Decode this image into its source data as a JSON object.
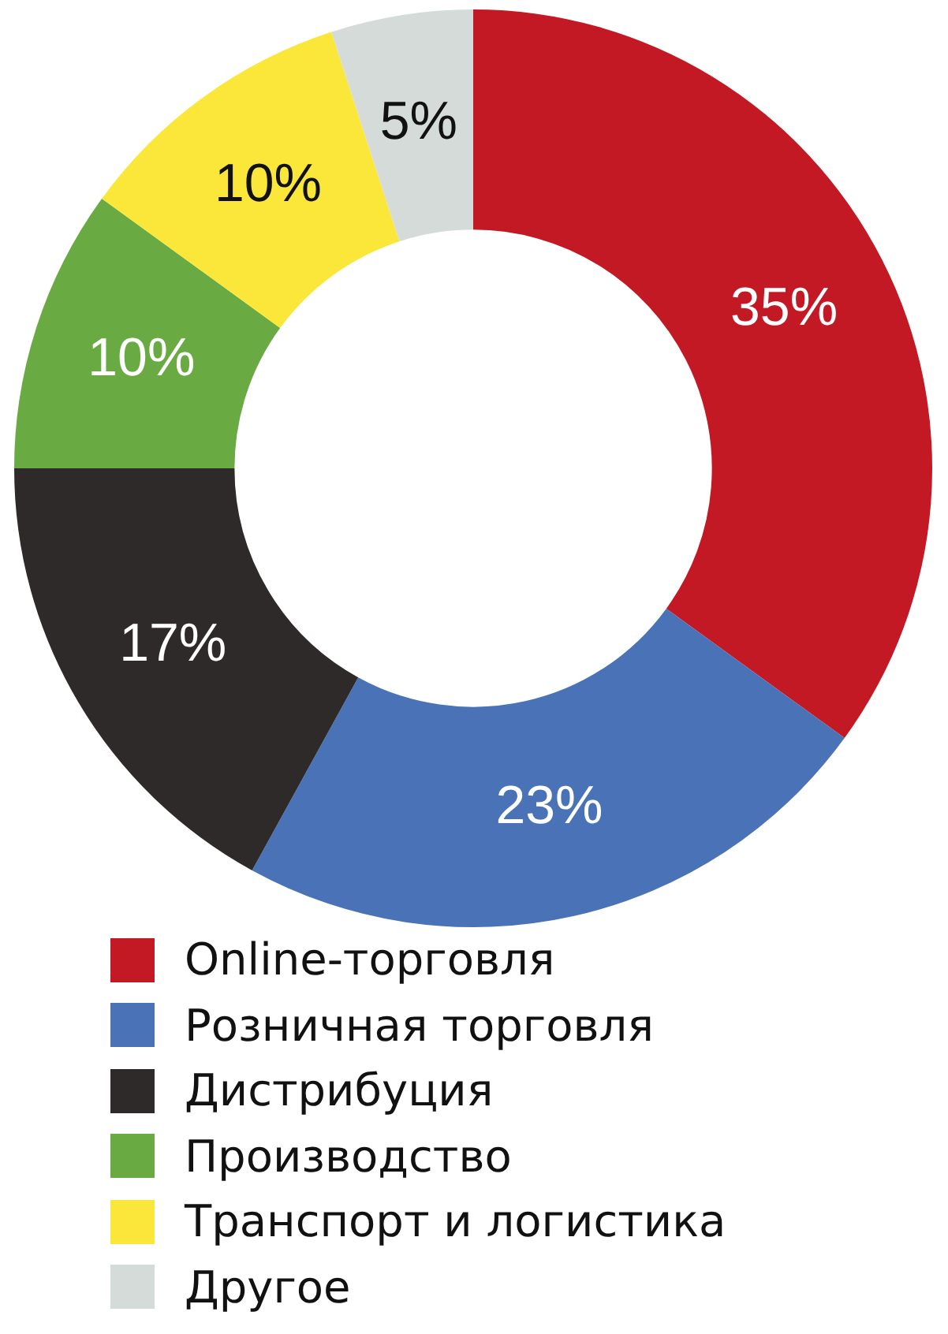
{
  "chart_data": {
    "type": "donut",
    "categories": [
      "Online-торговля",
      "Розничная торговля",
      "Дистрибуция",
      "Производство",
      "Транспорт и логистика",
      "Другое"
    ],
    "values": [
      35,
      23,
      17,
      10,
      10,
      5
    ],
    "colors": [
      "#c31924",
      "#4a72b7",
      "#2e2a29",
      "#6aaa42",
      "#fbe73a",
      "#d5dbd9"
    ],
    "value_labels": [
      "35%",
      "23%",
      "17%",
      "10%",
      "10%",
      "5%"
    ],
    "legend": "bottom"
  }
}
